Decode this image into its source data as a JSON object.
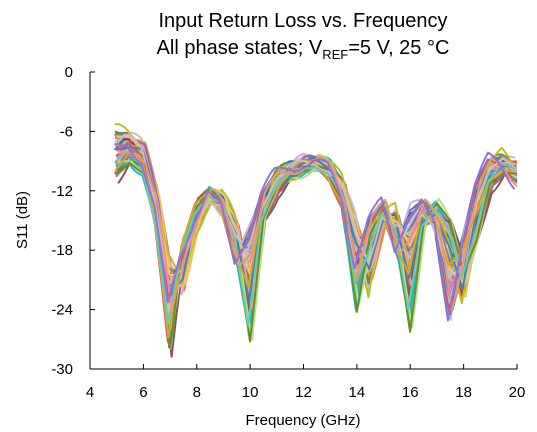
{
  "chart_data": {
    "type": "line",
    "title_line1": "Input Return Loss vs. Frequency",
    "title_line2_prefix": "All phase states; V",
    "title_line2_sub": "REF",
    "title_line2_suffix": "=5 V, 25 °C",
    "xlabel": "Frequency (GHz)",
    "ylabel": "S11 (dB)",
    "xlim": [
      4,
      20
    ],
    "ylim": [
      -30,
      0
    ],
    "xticks": [
      "4",
      "6",
      "8",
      "10",
      "12",
      "14",
      "16",
      "18",
      "20"
    ],
    "yticks": [
      "0",
      "-6",
      "-12",
      "-18",
      "-24",
      "-30"
    ],
    "grid": false,
    "legend": "none",
    "series_count": 64,
    "series": [
      {
        "x": [
          5.0,
          5.5,
          6.0,
          6.5,
          7.0,
          7.5,
          8.0,
          8.5,
          9.0,
          9.5,
          10.0,
          10.5,
          11.0,
          11.5,
          12.0,
          12.5,
          13.0,
          13.5,
          14.0,
          14.5,
          15.0,
          15.5,
          16.0,
          16.5,
          17.0,
          17.5,
          18.0,
          18.5,
          19.0,
          19.5,
          20.0
        ],
        "y": [
          -8.0,
          -7.0,
          -8.5,
          -14.0,
          -24.0,
          -18.0,
          -14.5,
          -12.5,
          -14.0,
          -19.0,
          -16.0,
          -12.5,
          -10.5,
          -9.5,
          -9.0,
          -9.2,
          -10.0,
          -12.5,
          -19.0,
          -15.0,
          -13.5,
          -18.0,
          -14.0,
          -13.0,
          -16.0,
          -25.0,
          -17.0,
          -11.5,
          -9.0,
          -9.5,
          -11.0
        ]
      },
      {
        "x": [
          5.0,
          5.5,
          6.0,
          6.5,
          7.0,
          7.5,
          8.0,
          8.5,
          9.0,
          9.5,
          10.0,
          10.5,
          11.0,
          11.5,
          12.0,
          12.5,
          13.0,
          13.5,
          14.0,
          14.5,
          15.0,
          15.5,
          16.0,
          16.5,
          17.0,
          17.5,
          18.0,
          18.5,
          19.0,
          19.5,
          20.0
        ],
        "y": [
          -6.0,
          -6.5,
          -7.5,
          -12.0,
          -19.0,
          -22.0,
          -16.0,
          -13.0,
          -12.5,
          -15.0,
          -22.0,
          -14.0,
          -11.0,
          -10.0,
          -9.5,
          -9.0,
          -9.5,
          -11.0,
          -15.0,
          -22.0,
          -15.0,
          -14.0,
          -19.0,
          -15.0,
          -14.5,
          -18.0,
          -23.0,
          -14.0,
          -10.0,
          -8.5,
          -9.5
        ]
      },
      {
        "x": [
          5.0,
          5.5,
          6.0,
          6.5,
          7.0,
          7.5,
          8.0,
          8.5,
          9.0,
          9.5,
          10.0,
          10.5,
          11.0,
          11.5,
          12.0,
          12.5,
          13.0,
          13.5,
          14.0,
          14.5,
          15.0,
          15.5,
          16.0,
          16.5,
          17.0,
          17.5,
          18.0,
          18.5,
          19.0,
          19.5,
          20.0
        ],
        "y": [
          -10.5,
          -9.0,
          -10.0,
          -16.0,
          -28.0,
          -17.0,
          -13.5,
          -12.0,
          -13.5,
          -18.0,
          -27.0,
          -15.0,
          -12.0,
          -10.5,
          -9.8,
          -9.5,
          -10.5,
          -13.5,
          -24.0,
          -16.5,
          -14.0,
          -17.0,
          -26.0,
          -15.5,
          -13.5,
          -15.0,
          -20.0,
          -17.0,
          -11.5,
          -10.0,
          -10.0
        ]
      }
    ]
  }
}
